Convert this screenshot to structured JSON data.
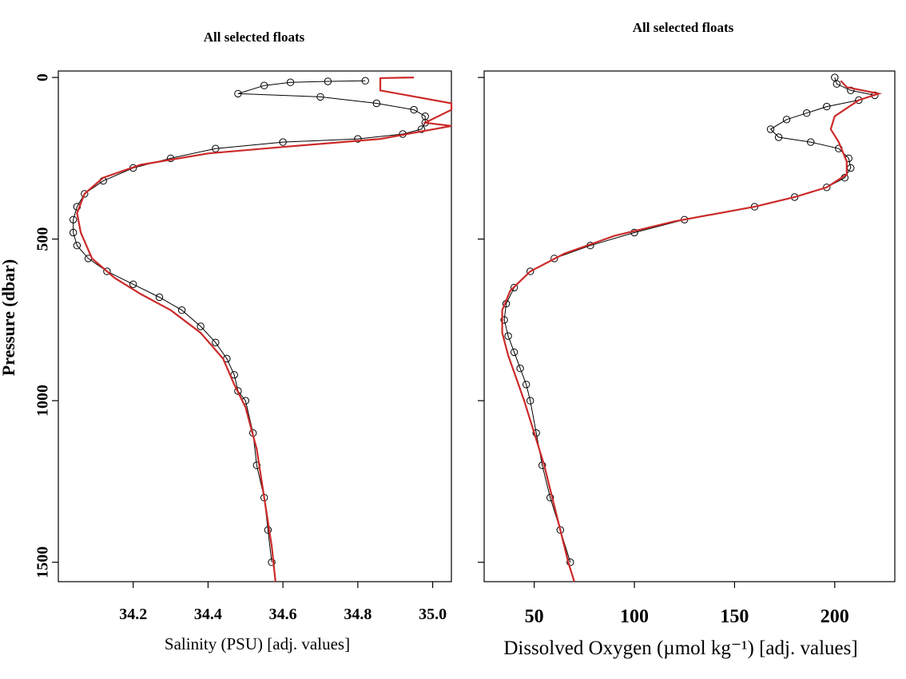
{
  "chart_data": [
    {
      "type": "line",
      "title": "All selected floats",
      "xlabel": "Salinity (PSU)  [adj. values]",
      "ylabel": "Pressure (dbar)",
      "xlim": [
        34.0,
        35.05
      ],
      "ylim": [
        1560,
        -20
      ],
      "x_ticks": [
        34.2,
        34.4,
        34.6,
        34.8,
        35.0
      ],
      "x_tick_labels": [
        "34.2",
        "34.4",
        "34.6",
        "34.8",
        "35.0"
      ],
      "y_ticks": [
        0,
        500,
        1000,
        1500
      ],
      "y_tick_labels": [
        "0",
        "500",
        "1000",
        "1500"
      ],
      "grid": false,
      "series": [
        {
          "color": "#000000",
          "marker": "open-circle",
          "points": [
            [
              34.82,
              10
            ],
            [
              34.72,
              12
            ],
            [
              34.62,
              15
            ],
            [
              34.55,
              25
            ],
            [
              34.48,
              50
            ],
            [
              34.7,
              60
            ],
            [
              34.85,
              80
            ],
            [
              34.95,
              100
            ],
            [
              34.98,
              120
            ],
            [
              34.98,
              140
            ],
            [
              34.97,
              160
            ],
            [
              34.92,
              175
            ],
            [
              34.8,
              190
            ],
            [
              34.6,
              200
            ],
            [
              34.42,
              220
            ],
            [
              34.3,
              250
            ],
            [
              34.2,
              280
            ],
            [
              34.12,
              320
            ],
            [
              34.07,
              360
            ],
            [
              34.05,
              400
            ],
            [
              34.04,
              440
            ],
            [
              34.04,
              480
            ],
            [
              34.05,
              520
            ],
            [
              34.08,
              560
            ],
            [
              34.13,
              600
            ],
            [
              34.2,
              640
            ],
            [
              34.27,
              680
            ],
            [
              34.33,
              720
            ],
            [
              34.38,
              770
            ],
            [
              34.42,
              820
            ],
            [
              34.45,
              870
            ],
            [
              34.47,
              920
            ],
            [
              34.48,
              970
            ],
            [
              34.5,
              1000
            ],
            [
              34.52,
              1100
            ],
            [
              34.53,
              1200
            ],
            [
              34.55,
              1300
            ],
            [
              34.56,
              1400
            ],
            [
              34.57,
              1500
            ]
          ]
        },
        {
          "color": "#cc2a2a",
          "marker": "none",
          "points": [
            [
              34.95,
              0
            ],
            [
              34.86,
              2
            ],
            [
              34.86,
              40
            ],
            [
              35.05,
              80
            ],
            [
              35.05,
              100
            ],
            [
              34.98,
              140
            ],
            [
              35.05,
              150
            ],
            [
              34.86,
              190
            ],
            [
              34.6,
              215
            ],
            [
              34.4,
              235
            ],
            [
              34.22,
              270
            ],
            [
              34.12,
              310
            ],
            [
              34.07,
              360
            ],
            [
              34.05,
              420
            ],
            [
              34.06,
              480
            ],
            [
              34.09,
              560
            ],
            [
              34.15,
              620
            ],
            [
              34.22,
              670
            ],
            [
              34.3,
              720
            ],
            [
              34.38,
              790
            ],
            [
              34.44,
              870
            ],
            [
              34.47,
              950
            ],
            [
              34.5,
              1020
            ],
            [
              34.53,
              1150
            ],
            [
              34.55,
              1300
            ],
            [
              34.57,
              1450
            ],
            [
              34.58,
              1560
            ]
          ]
        }
      ]
    },
    {
      "type": "line",
      "title": "All selected floats",
      "xlabel": "Dissolved Oxygen (µmol kg⁻¹)  [adj. values]",
      "ylabel": "",
      "xlim": [
        25,
        230
      ],
      "ylim": [
        1560,
        -20
      ],
      "x_ticks": [
        50,
        100,
        150,
        200
      ],
      "x_tick_labels": [
        "50",
        "100",
        "150",
        "200"
      ],
      "y_ticks": [
        0,
        500,
        1000,
        1500
      ],
      "grid": false,
      "series": [
        {
          "color": "#000000",
          "marker": "open-circle",
          "points": [
            [
              200,
              0
            ],
            [
              201,
              20
            ],
            [
              208,
              40
            ],
            [
              220,
              55
            ],
            [
              212,
              70
            ],
            [
              196,
              90
            ],
            [
              186,
              110
            ],
            [
              176,
              130
            ],
            [
              168,
              160
            ],
            [
              172,
              185
            ],
            [
              188,
              200
            ],
            [
              202,
              220
            ],
            [
              207,
              250
            ],
            [
              208,
              280
            ],
            [
              205,
              310
            ],
            [
              196,
              340
            ],
            [
              180,
              370
            ],
            [
              160,
              400
            ],
            [
              125,
              440
            ],
            [
              100,
              480
            ],
            [
              78,
              520
            ],
            [
              60,
              560
            ],
            [
              48,
              600
            ],
            [
              40,
              650
            ],
            [
              36,
              700
            ],
            [
              35,
              750
            ],
            [
              37,
              800
            ],
            [
              40,
              850
            ],
            [
              43,
              900
            ],
            [
              46,
              950
            ],
            [
              48,
              1000
            ],
            [
              51,
              1100
            ],
            [
              54,
              1200
            ],
            [
              58,
              1300
            ],
            [
              63,
              1400
            ],
            [
              68,
              1500
            ]
          ]
        },
        {
          "color": "#cc2a2a",
          "marker": "none",
          "points": [
            [
              203,
              10
            ],
            [
              206,
              30
            ],
            [
              222,
              50
            ],
            [
              212,
              70
            ],
            [
              200,
              120
            ],
            [
              198,
              160
            ],
            [
              202,
              200
            ],
            [
              206,
              260
            ],
            [
              206,
              300
            ],
            [
              196,
              340
            ],
            [
              180,
              370
            ],
            [
              160,
              400
            ],
            [
              120,
              445
            ],
            [
              90,
              490
            ],
            [
              65,
              545
            ],
            [
              48,
              600
            ],
            [
              38,
              660
            ],
            [
              34,
              720
            ],
            [
              34,
              790
            ],
            [
              37,
              860
            ],
            [
              41,
              930
            ],
            [
              45,
              1000
            ],
            [
              50,
              1100
            ],
            [
              55,
              1200
            ],
            [
              59,
              1300
            ],
            [
              63,
              1400
            ],
            [
              67,
              1500
            ],
            [
              70,
              1560
            ]
          ]
        }
      ]
    }
  ]
}
